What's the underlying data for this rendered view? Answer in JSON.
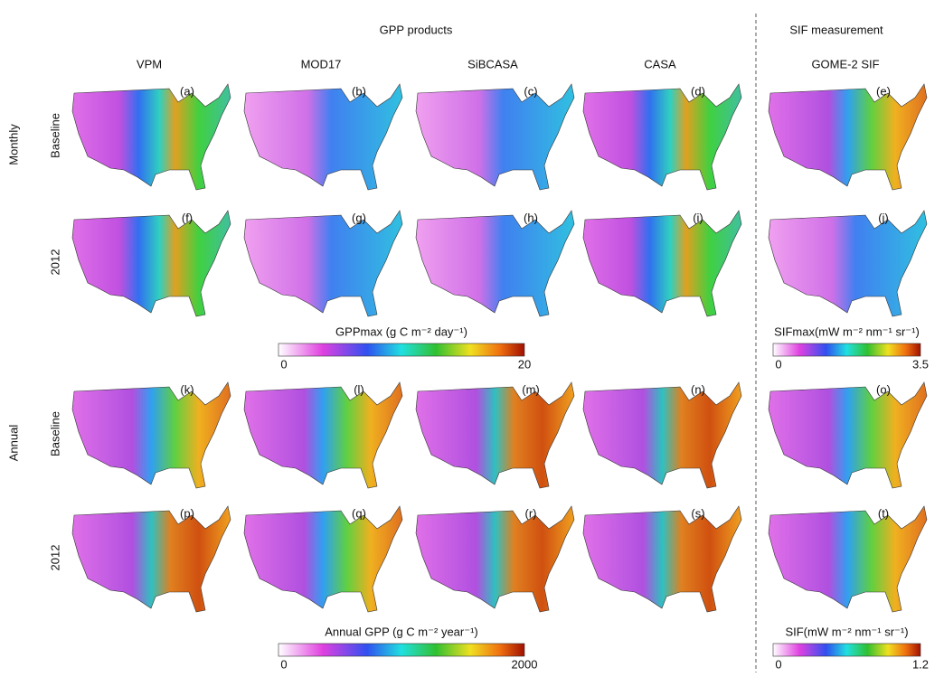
{
  "header": {
    "left_title": "GPP products",
    "right_title": "SIF measurement"
  },
  "columns": [
    "VPM",
    "MOD17",
    "SiBCASA",
    "CASA",
    "GOME-2 SIF"
  ],
  "row_groups": [
    "Monthly",
    "Annual"
  ],
  "row_labels": [
    "Baseline",
    "2012",
    "Baseline",
    "2012"
  ],
  "panels": [
    [
      "(a)",
      "(b)",
      "(c)",
      "(d)",
      "(e)"
    ],
    [
      "(f)",
      "(g)",
      "(h)",
      "(i)",
      "(j)"
    ],
    [
      "(k)",
      "(l)",
      "(m)",
      "(n)",
      "(o)"
    ],
    [
      "(p)",
      "(q)",
      "(r)",
      "(s)",
      "(t)"
    ]
  ],
  "colorbars": [
    {
      "title": "GPPmax (g C m⁻² day⁻¹)",
      "min": "0",
      "max": "20"
    },
    {
      "title": "SIFmax(mW m⁻² nm⁻¹ sr⁻¹)",
      "min": "0",
      "max": "3.5"
    },
    {
      "title": "Annual GPP (g C m⁻² year⁻¹)",
      "min": "0",
      "max": "2000"
    },
    {
      "title": "SIF(mW m⁻² nm⁻¹ sr⁻¹)",
      "min": "0",
      "max": "1.2"
    }
  ]
}
